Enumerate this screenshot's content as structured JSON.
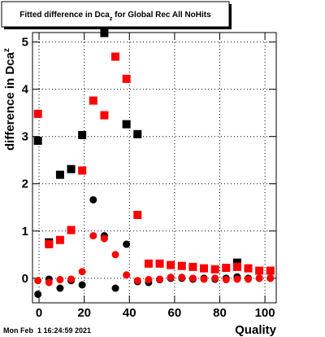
{
  "chart_data": {
    "type": "scatter",
    "title": {
      "main": "Fitted difference in Dca",
      "sub": "z",
      "rest": " for Global Rec All NoHits"
    },
    "y_label": {
      "main": "difference in Dca",
      "sub": "z"
    },
    "x_label": "Quality",
    "timestamp": "Mon Feb  1 16:24:59 2021",
    "xlim": [
      -2.9,
      105
    ],
    "ylim": [
      -0.52,
      5.2
    ],
    "xticks": [
      0,
      20,
      40,
      60,
      80,
      100
    ],
    "yticks": [
      0,
      1,
      2,
      3,
      4,
      5
    ],
    "grid": true,
    "x": [
      -0.5,
      4.4,
      9.3,
      14.2,
      19.1,
      24,
      28.9,
      33.8,
      38.7,
      43.6,
      48.5,
      53.4,
      58.3,
      63.2,
      68.1,
      73,
      77.9,
      82.8,
      87.7,
      92.6,
      97.5,
      102.4
    ],
    "series": [
      {
        "marker": "square",
        "color": "#000000",
        "values": [
          2.91,
          0.76,
          2.19,
          2.31,
          3.03,
          null,
          5.19,
          null,
          3.26,
          3.05,
          null,
          null,
          null,
          null,
          null,
          null,
          null,
          null,
          0.33,
          null,
          null,
          null
        ]
      },
      {
        "marker": "circle",
        "color": "#000000",
        "values": [
          -0.34,
          -0.02,
          -0.21,
          -0.05,
          -0.14,
          1.66,
          0.9,
          -0.21,
          0.72,
          -0.07,
          -0.09,
          -0.03,
          0,
          0,
          -0.02,
          0,
          -0.02,
          0,
          0.03,
          0,
          0,
          0
        ]
      },
      {
        "marker": "square",
        "color": "#ff0000",
        "values": [
          3.48,
          0.72,
          0.81,
          1.02,
          2.28,
          3.76,
          3.45,
          4.69,
          4.22,
          1.34,
          0.31,
          0.31,
          0.28,
          0.26,
          0.24,
          0.21,
          0.19,
          0.22,
          0.24,
          0.21,
          0.16,
          0.16
        ]
      },
      {
        "marker": "circle",
        "color": "#ff0000",
        "values": [
          -0.05,
          -0.09,
          -0.03,
          -0.02,
          0.14,
          0.9,
          0.84,
          0.5,
          0.07,
          -0.05,
          -0.03,
          -0.02,
          0.02,
          0.02,
          0,
          -0.02,
          0,
          -0.03,
          -0.02,
          -0.02,
          0,
          0
        ]
      }
    ]
  }
}
